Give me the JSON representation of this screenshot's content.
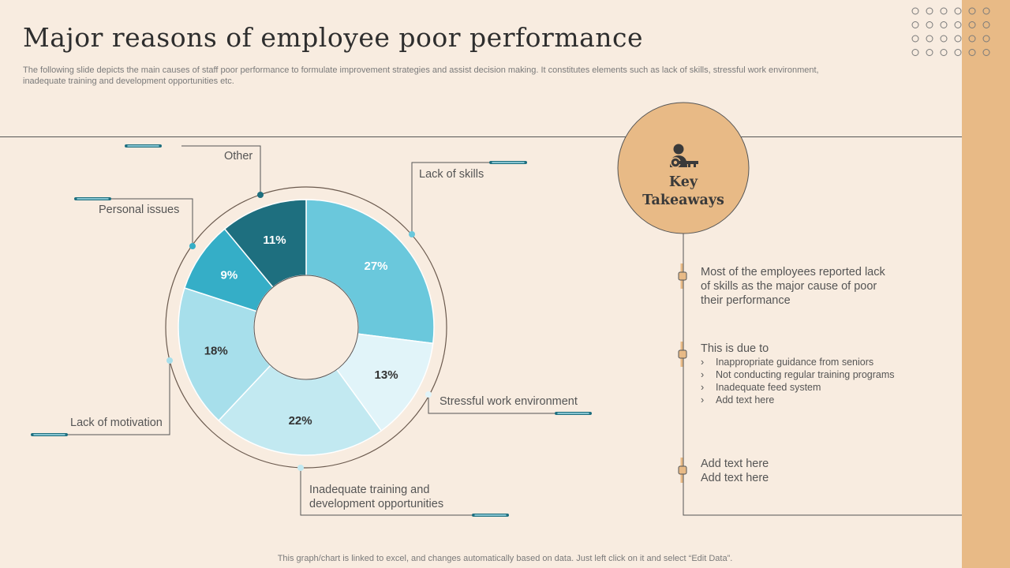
{
  "header": {
    "title": "Major reasons of employee poor performance",
    "subtitle": "The following slide depicts the main causes of staff poor performance to formulate improvement strategies and assist decision making. It constitutes elements such as lack of skills, stressful work environment, inadequate training and development opportunities etc."
  },
  "chart_data": {
    "type": "pie",
    "variant": "donut",
    "title": "",
    "categories": [
      "Lack of skills",
      "Stressful work environment",
      "Inadequate training and development opportunities",
      "Lack of motivation",
      "Personal issues",
      "Other"
    ],
    "values": [
      27,
      13,
      22,
      18,
      9,
      11
    ],
    "labels": [
      "27%",
      "13%",
      "22%",
      "18%",
      "9%",
      "11%"
    ],
    "colors": [
      "#6ac8dc",
      "#e1f4f9",
      "#c2e9f1",
      "#a7dfeb",
      "#35aec7",
      "#1e6f7f"
    ],
    "label_colors": [
      "#ffffff",
      "#333333",
      "#333333",
      "#333333",
      "#ffffff",
      "#ffffff"
    ]
  },
  "callouts": {
    "other": "Other",
    "personal": "Personal issues",
    "skills": "Lack of skills",
    "motivation": "Lack of motivation",
    "stress": "Stressful work environment",
    "training_line1": "Inadequate training and",
    "training_line2": "development opportunities"
  },
  "takeaways": {
    "icon": "key-person-icon",
    "title_line1": "Key",
    "title_line2": "Takeaways",
    "item1_line1": "Most of the employees reported lack",
    "item1_line2": "of skills as the major cause of poor",
    "item1_line3": "their performance",
    "item2_heading": "This is due to",
    "item2_bullets": [
      "Inappropriate  guidance from seniors",
      "Not conducting regular training programs",
      "Inadequate  feed system",
      "Add text here"
    ],
    "item3_line1": "Add text here",
    "item3_line2": "Add text here"
  },
  "footer": {
    "note": "This graph/chart is linked to excel,  and changes automatically based on data. Just left click on it and select “Edit Data”."
  },
  "colors": {
    "background": "#f8ece0",
    "accent": "#e8ba86",
    "teal_dark": "#1e6f7f"
  }
}
